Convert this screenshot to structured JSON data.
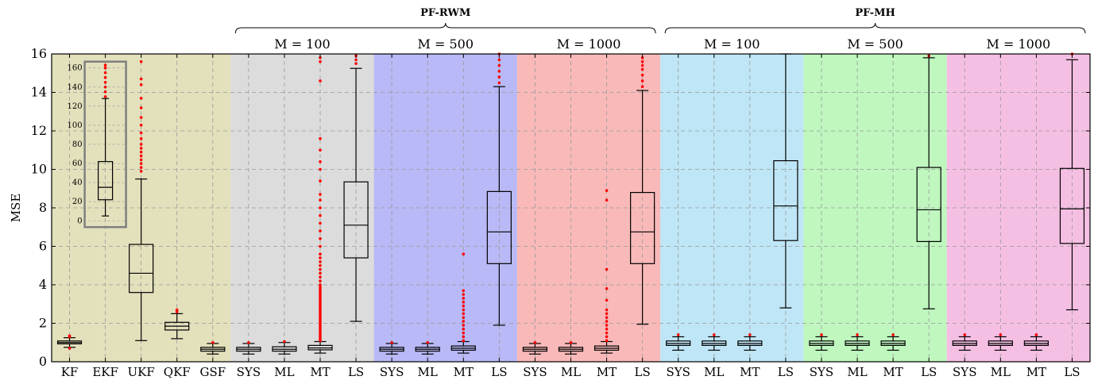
{
  "chart_data": {
    "type": "boxplot",
    "ylabel": "MSE",
    "ylim": [
      0,
      16
    ],
    "yticks": [
      0,
      2,
      4,
      6,
      8,
      10,
      12,
      14,
      16
    ],
    "grid": true,
    "categories": [
      "KF",
      "EKF",
      "UKF",
      "QKF",
      "GSF",
      "SYS",
      "ML",
      "MT",
      "LS",
      "SYS",
      "ML",
      "MT",
      "LS",
      "SYS",
      "ML",
      "MT",
      "LS",
      "SYS",
      "ML",
      "MT",
      "LS",
      "SYS",
      "ML",
      "MT",
      "LS",
      "SYS",
      "ML",
      "MT",
      "LS"
    ],
    "groups": [
      {
        "label": "PF-RWM",
        "subs": [
          {
            "label": "M = 100"
          },
          {
            "label": "M = 500"
          },
          {
            "label": "M = 1000"
          }
        ]
      },
      {
        "label": "PF-MH",
        "subs": [
          {
            "label": "M = 100"
          },
          {
            "label": "M = 500"
          },
          {
            "label": "M = 1000"
          }
        ]
      }
    ],
    "region_colors": [
      "#e3e0bc",
      "#dcdcdc",
      "#b9b9f7",
      "#f9b9b9",
      "#bfe6f6",
      "#bff7bf",
      "#f5bfe3"
    ],
    "boxes": [
      {
        "min": 0.75,
        "q1": 0.93,
        "median": 1.0,
        "q3": 1.08,
        "max": 1.25,
        "outliers": [
          1.3,
          1.35,
          0.7
        ]
      },
      {
        "min": null,
        "q1": null,
        "median": null,
        "q3": null,
        "max": null,
        "outliers": []
      },
      {
        "min": 1.1,
        "q1": 3.6,
        "median": 4.6,
        "q3": 6.1,
        "max": 9.5,
        "outliers": [
          9.9,
          10.1,
          10.3,
          10.5,
          10.7,
          10.9,
          11.1,
          11.3,
          11.6,
          11.9,
          12.3,
          12.7,
          13.2,
          13.7,
          14.4,
          14.7,
          15.6
        ]
      },
      {
        "min": 1.2,
        "q1": 1.65,
        "median": 1.85,
        "q3": 2.05,
        "max": 2.5,
        "outliers": [
          2.6,
          2.7
        ]
      },
      {
        "min": 0.4,
        "q1": 0.55,
        "median": 0.65,
        "q3": 0.75,
        "max": 0.95,
        "outliers": [
          1.0
        ]
      },
      {
        "min": 0.4,
        "q1": 0.55,
        "median": 0.65,
        "q3": 0.75,
        "max": 0.95,
        "outliers": [
          1.0
        ]
      },
      {
        "min": 0.4,
        "q1": 0.55,
        "median": 0.65,
        "q3": 0.78,
        "max": 1.0,
        "outliers": [
          1.05
        ]
      },
      {
        "min": 0.45,
        "q1": 0.62,
        "median": 0.72,
        "q3": 0.85,
        "max": 1.05,
        "outliers": [
          1.1,
          1.2,
          1.3,
          1.4,
          1.5,
          1.6,
          1.7,
          1.8,
          1.9,
          2.0,
          2.1,
          2.2,
          2.3,
          2.4,
          2.5,
          2.6,
          2.7,
          2.8,
          2.9,
          3.0,
          3.1,
          3.2,
          3.3,
          3.4,
          3.5,
          3.6,
          3.7,
          3.8,
          3.9,
          4.0,
          4.2,
          4.4,
          4.6,
          4.8,
          5.0,
          5.2,
          5.4,
          5.6,
          6.0,
          6.4,
          6.8,
          7.2,
          7.6,
          8.0,
          8.4,
          8.7,
          9.4,
          10.0,
          10.4,
          11.0,
          11.6,
          14.6,
          15.6,
          15.8
        ]
      },
      {
        "min": 2.1,
        "q1": 5.4,
        "median": 7.1,
        "q3": 9.35,
        "max": 15.25,
        "outliers": [
          15.5,
          15.7,
          15.9
        ]
      },
      {
        "min": 0.4,
        "q1": 0.55,
        "median": 0.65,
        "q3": 0.75,
        "max": 0.95,
        "outliers": [
          1.0
        ]
      },
      {
        "min": 0.4,
        "q1": 0.55,
        "median": 0.65,
        "q3": 0.75,
        "max": 0.95,
        "outliers": [
          1.0
        ]
      },
      {
        "min": 0.45,
        "q1": 0.6,
        "median": 0.7,
        "q3": 0.82,
        "max": 1.05,
        "outliers": [
          1.1,
          1.3,
          1.5,
          1.7,
          1.9,
          2.1,
          2.3,
          2.5,
          2.7,
          2.9,
          3.1,
          3.3,
          3.5,
          3.7,
          5.6
        ]
      },
      {
        "min": 1.9,
        "q1": 5.1,
        "median": 6.75,
        "q3": 8.85,
        "max": 14.3,
        "outliers": [
          14.5,
          14.8,
          15.1,
          15.4,
          15.7,
          16.0
        ]
      },
      {
        "min": 0.4,
        "q1": 0.55,
        "median": 0.65,
        "q3": 0.75,
        "max": 0.95,
        "outliers": [
          1.0
        ]
      },
      {
        "min": 0.4,
        "q1": 0.55,
        "median": 0.65,
        "q3": 0.75,
        "max": 0.95,
        "outliers": [
          1.0
        ]
      },
      {
        "min": 0.45,
        "q1": 0.6,
        "median": 0.7,
        "q3": 0.82,
        "max": 1.05,
        "outliers": [
          1.1,
          1.3,
          1.5,
          1.7,
          1.9,
          2.1,
          2.3,
          2.5,
          2.7,
          3.2,
          3.8,
          4.8,
          8.4,
          8.9
        ]
      },
      {
        "min": 1.95,
        "q1": 5.1,
        "median": 6.75,
        "q3": 8.8,
        "max": 14.1,
        "outliers": [
          14.3,
          14.6,
          14.9,
          15.2,
          15.4,
          15.6,
          15.8
        ]
      },
      {
        "min": 0.6,
        "q1": 0.85,
        "median": 0.95,
        "q3": 1.08,
        "max": 1.3,
        "outliers": [
          1.4
        ]
      },
      {
        "min": 0.6,
        "q1": 0.85,
        "median": 0.95,
        "q3": 1.08,
        "max": 1.3,
        "outliers": [
          1.4
        ]
      },
      {
        "min": 0.6,
        "q1": 0.85,
        "median": 0.95,
        "q3": 1.08,
        "max": 1.3,
        "outliers": [
          1.4
        ]
      },
      {
        "min": 2.8,
        "q1": 6.3,
        "median": 8.1,
        "q3": 10.45,
        "max": 16.0,
        "outliers": []
      },
      {
        "min": 0.6,
        "q1": 0.85,
        "median": 0.95,
        "q3": 1.08,
        "max": 1.3,
        "outliers": [
          1.4
        ]
      },
      {
        "min": 0.6,
        "q1": 0.85,
        "median": 0.95,
        "q3": 1.08,
        "max": 1.3,
        "outliers": [
          1.4
        ]
      },
      {
        "min": 0.6,
        "q1": 0.85,
        "median": 0.95,
        "q3": 1.08,
        "max": 1.3,
        "outliers": [
          1.4
        ]
      },
      {
        "min": 2.75,
        "q1": 6.25,
        "median": 7.9,
        "q3": 10.1,
        "max": 15.8,
        "outliers": [
          15.9
        ]
      },
      {
        "min": 0.6,
        "q1": 0.85,
        "median": 0.95,
        "q3": 1.08,
        "max": 1.3,
        "outliers": [
          1.4
        ]
      },
      {
        "min": 0.6,
        "q1": 0.85,
        "median": 0.95,
        "q3": 1.08,
        "max": 1.3,
        "outliers": [
          1.4
        ]
      },
      {
        "min": 0.6,
        "q1": 0.85,
        "median": 0.95,
        "q3": 1.08,
        "max": 1.3,
        "outliers": [
          1.4
        ]
      },
      {
        "min": 2.7,
        "q1": 6.15,
        "median": 7.95,
        "q3": 10.05,
        "max": 15.7,
        "outliers": [
          16.0
        ]
      }
    ],
    "inset": {
      "for_category": "EKF",
      "ylim": [
        0,
        160
      ],
      "yticks": [
        0,
        20,
        40,
        60,
        80,
        100,
        120,
        140,
        160
      ],
      "box": {
        "min": 5,
        "q1": 22,
        "median": 35,
        "q3": 62,
        "max": 128,
        "outliers": [
          130,
          135,
          140,
          145,
          150,
          155,
          160,
          163
        ]
      }
    }
  }
}
